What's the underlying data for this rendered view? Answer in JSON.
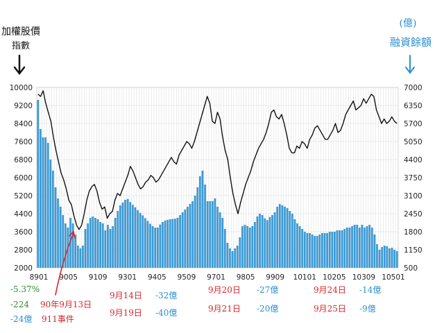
{
  "chart_data": {
    "type": "bar+line",
    "title": "",
    "left_axis": {
      "label_lines": [
        "加權股價",
        "指數"
      ],
      "ylim": [
        2000,
        10000
      ],
      "ticks": [
        10000,
        9200,
        8400,
        7600,
        6800,
        6000,
        5200,
        4400,
        3600,
        2800,
        2000
      ]
    },
    "right_axis": {
      "label_lines": [
        "(億)",
        "融資餘額"
      ],
      "ylim": [
        500,
        7000
      ],
      "ticks": [
        7000,
        6350,
        5700,
        5050,
        4400,
        3750,
        3100,
        2450,
        1800,
        1150,
        500
      ]
    },
    "x_tick_labels": [
      "8901",
      "9005",
      "9109",
      "9301",
      "9405",
      "9509",
      "9701",
      "9805",
      "9909",
      "10101",
      "10205",
      "10309",
      "10501"
    ],
    "grid": true,
    "series": [
      {
        "axis": "left",
        "kind": "line",
        "color": "#111111",
        "values": [
          9700,
          9600,
          9850,
          9300,
          8900,
          8500,
          7800,
          7200,
          6700,
          6200,
          5900,
          5500,
          5000,
          4800,
          4300,
          3900,
          3700,
          3900,
          4400,
          5000,
          5400,
          5600,
          5700,
          5400,
          4900,
          4600,
          4700,
          4200,
          4400,
          4500,
          5000,
          5300,
          5200,
          5500,
          5800,
          6100,
          6500,
          6300,
          6000,
          5700,
          5500,
          5600,
          5800,
          5900,
          6100,
          6000,
          5800,
          5900,
          6100,
          6300,
          6500,
          6700,
          6900,
          6700,
          6600,
          7000,
          7200,
          7400,
          7600,
          7500,
          7300,
          7600,
          8000,
          8400,
          8800,
          9200,
          9600,
          9300,
          8500,
          8400,
          8900,
          8600,
          7800,
          7200,
          6800,
          6000,
          5300,
          4800,
          4400,
          4900,
          5300,
          5700,
          6000,
          6300,
          6700,
          7000,
          7300,
          7500,
          7700,
          8000,
          8400,
          8900,
          9000,
          8700,
          8600,
          8800,
          8400,
          7900,
          7300,
          7100,
          7100,
          7400,
          7300,
          7600,
          7500,
          7300,
          7700,
          7900,
          8200,
          8300,
          8100,
          7900,
          7700,
          7700,
          7900,
          8100,
          8400,
          8000,
          8100,
          8400,
          8800,
          9000,
          9200,
          9400,
          9000,
          9100,
          9200,
          9500,
          9300,
          9500,
          9700,
          9600,
          9000,
          8700,
          8400,
          8600,
          8400,
          8500,
          8700,
          8500,
          8400
        ]
      },
      {
        "axis": "right",
        "kind": "bar",
        "color": "#3a9ad6",
        "values": [
          6550,
          5500,
          5200,
          5200,
          5000,
          4400,
          4000,
          3400,
          3000,
          2700,
          2400,
          2100,
          1950,
          2300,
          2100,
          1700,
          1300,
          1200,
          1300,
          1900,
          2100,
          2300,
          2350,
          2300,
          2250,
          2150,
          2100,
          1850,
          2050,
          1900,
          2000,
          2300,
          2550,
          2750,
          2850,
          2950,
          2980,
          2870,
          2770,
          2680,
          2580,
          2480,
          2390,
          2290,
          2190,
          2090,
          2000,
          1950,
          1950,
          2060,
          2150,
          2200,
          2230,
          2250,
          2260,
          2270,
          2300,
          2400,
          2500,
          2600,
          2700,
          2800,
          2900,
          3100,
          3400,
          3800,
          4000,
          3500,
          2900,
          2900,
          2900,
          3000,
          2700,
          2500,
          2300,
          1900,
          1400,
          1200,
          1100,
          1200,
          1300,
          1600,
          2000,
          2050,
          2000,
          1950,
          2000,
          2150,
          2350,
          2450,
          2400,
          2280,
          2220,
          2330,
          2400,
          2500,
          2700,
          2800,
          2750,
          2700,
          2650,
          2550,
          2450,
          2250,
          2100,
          2000,
          1900,
          1800,
          1750,
          1750,
          1700,
          1650,
          1650,
          1700,
          1750,
          1750,
          1750,
          1800,
          1800,
          1800,
          1850,
          1850,
          1850,
          1900,
          1950,
          1950,
          2000,
          2050,
          2050,
          1950,
          2050,
          1950,
          2000,
          2050,
          1950,
          1700,
          1350,
          1150,
          1250,
          1300,
          1280,
          1200,
          1220,
          1150,
          1100
        ]
      }
    ],
    "annotations": {
      "left_group": [
        "-5.37%",
        "-224",
        "-24億"
      ],
      "event_lines": [
        "90年9月13日",
        "911事件"
      ],
      "date_col1": [
        "9月14日",
        "9月19日"
      ],
      "amt_col1": [
        "-32億",
        "-40億"
      ],
      "date_col2": [
        "9月20日",
        "9月21日"
      ],
      "amt_col2": [
        "-27億",
        "-20億"
      ],
      "date_col3": [
        "9月24日",
        "9月25日"
      ],
      "amt_col3": [
        "-14億",
        "-9億"
      ]
    },
    "colors": {
      "bar": "#3a9ad6",
      "line": "#111111",
      "green": "#2e8b2e",
      "red": "#d8262b",
      "blue": "#2a8fd0",
      "arrow_left": "#111111",
      "arrow_right": "#2a8fd0"
    }
  }
}
